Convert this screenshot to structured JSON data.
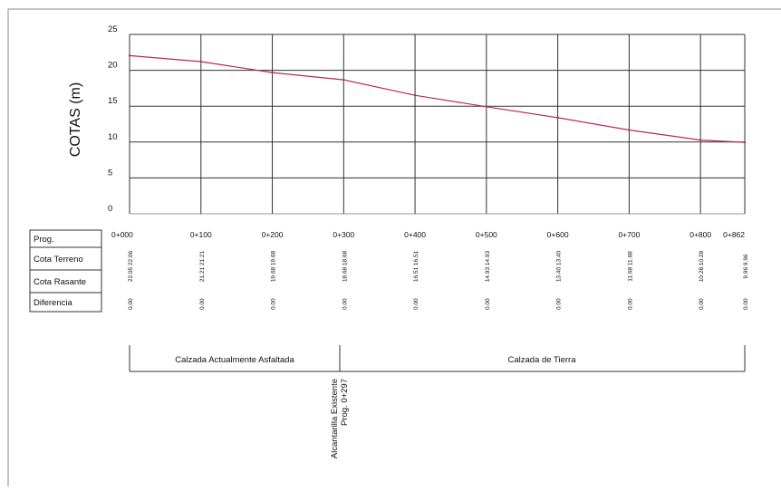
{
  "chart_data": {
    "type": "line",
    "ylabel": "COTAS (m)",
    "ylim": [
      0,
      25
    ],
    "yticks": [
      0,
      5,
      10,
      15,
      20,
      25
    ],
    "xlim": [
      0,
      862
    ],
    "grid": true,
    "x": [
      0,
      100,
      200,
      300,
      400,
      500,
      600,
      700,
      800,
      862
    ],
    "x_labels": [
      "0+000",
      "0+100",
      "0+200",
      "0+300",
      "0+400",
      "0+500",
      "0+600",
      "0+700",
      "0+800",
      "0+862"
    ],
    "series": [
      {
        "values": [
          22.05,
          21.21,
          19.68,
          18.68,
          16.51,
          14.93,
          13.4,
          11.68,
          10.28,
          9.96
        ],
        "color": "#b03050"
      }
    ],
    "table": {
      "row_labels": [
        "Prog.",
        "Cota Terreno",
        "Cota Rasante",
        "Diferencia"
      ],
      "cota_terreno": [
        "22.05 22.06",
        "21.21 21.21",
        "19.68 19.68",
        "18.68 18.68",
        "16.51 16.51",
        "14.93 14.93",
        "13.40 13.40",
        "11.68 11.68",
        "10.28 10.28",
        "9.96 9.96"
      ],
      "diferencia": [
        "0.00",
        "0.00",
        "0.00",
        "0.00",
        "0.00",
        "0.00",
        "0.00",
        "0.00",
        "0.00",
        "0.00"
      ]
    },
    "sections": [
      {
        "label": "Calzada Actualmente Asfaltada",
        "from": 0,
        "to": 300
      },
      {
        "label": "Calzada de Tierra",
        "from": 300,
        "to": 862
      }
    ],
    "annotation": {
      "lines": [
        "Alcantarilla Existente",
        "Prog. 0+297"
      ],
      "x": 297
    }
  }
}
